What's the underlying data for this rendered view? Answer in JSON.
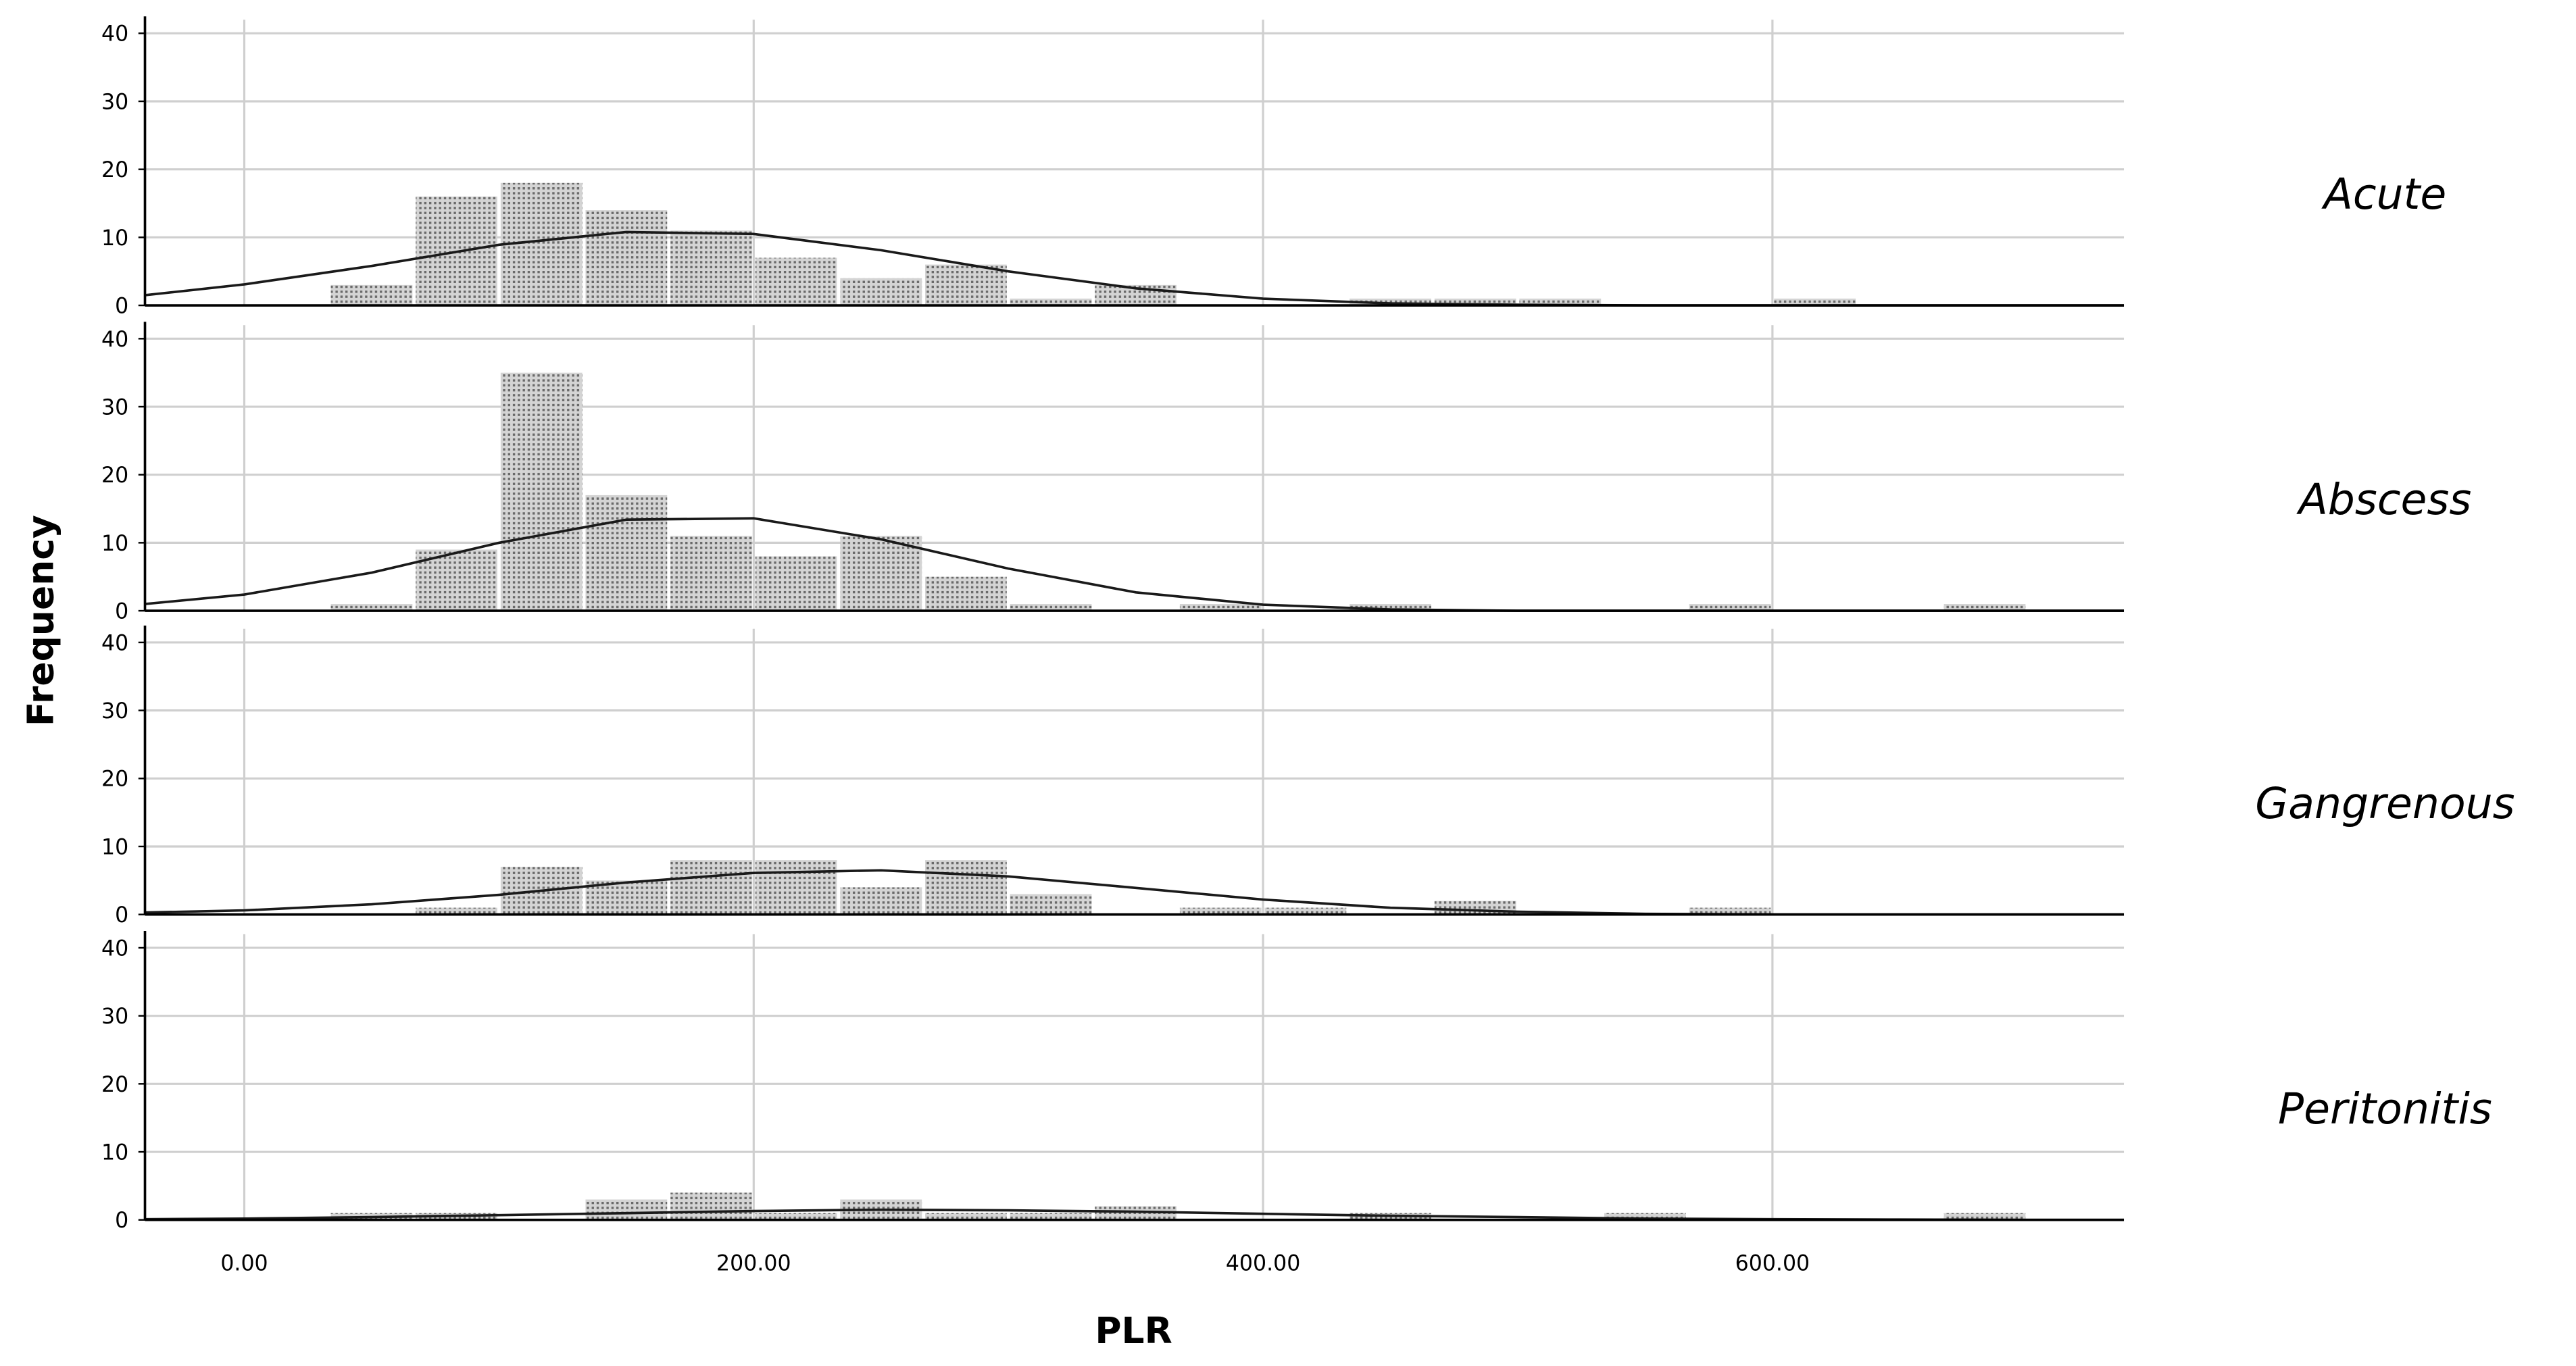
{
  "chart_data": {
    "type": "histogram",
    "xlabel": "PLR",
    "ylabel": "Frequency",
    "xlim": [
      -39,
      738
    ],
    "xticks": [
      {
        "value": 0,
        "label": "0.00"
      },
      {
        "value": 200,
        "label": "200.00"
      },
      {
        "value": 400,
        "label": "400.00"
      },
      {
        "value": 600,
        "label": "600.00"
      }
    ],
    "ylim": [
      0,
      42
    ],
    "yticks": [
      0,
      10,
      20,
      30,
      40
    ],
    "grid": true,
    "color": "#a8a8a8",
    "curve_color": "#1a1a1a",
    "bins": [
      0,
      33.33,
      66.67,
      100,
      133.33,
      166.67,
      200,
      233.33,
      266.67,
      300,
      333.33,
      366.67,
      400,
      433.33,
      466.67,
      500,
      533.33,
      566.67,
      600,
      633.33,
      666.67,
      700
    ],
    "curve_x": [
      -39,
      0,
      50,
      100,
      150,
      200,
      250,
      300,
      350,
      400,
      450,
      500,
      550,
      600,
      650,
      700,
      738
    ],
    "series": [
      {
        "name": "Acute",
        "values": [
          0,
          3,
          16,
          18,
          14,
          11,
          7,
          4,
          6,
          1,
          3,
          0,
          0,
          1,
          1,
          1,
          0,
          0,
          1,
          0,
          0
        ],
        "curve": [
          1.5,
          3.1,
          5.8,
          8.9,
          10.8,
          10.5,
          8.1,
          5.0,
          2.5,
          1.0,
          0.3,
          0.1,
          0,
          0,
          0,
          0,
          0
        ]
      },
      {
        "name": "Abscess",
        "values": [
          0,
          1,
          9,
          35,
          17,
          11,
          8,
          11,
          5,
          1,
          0,
          1,
          0,
          1,
          0,
          0,
          0,
          1,
          0,
          0,
          1
        ],
        "curve": [
          1.0,
          2.4,
          5.6,
          10.0,
          13.4,
          13.6,
          10.5,
          6.2,
          2.7,
          0.9,
          0.2,
          0,
          0,
          0,
          0,
          0,
          0
        ]
      },
      {
        "name": "Gangrenous",
        "values": [
          0,
          0,
          1,
          7,
          5,
          8,
          8,
          4,
          8,
          3,
          0,
          1,
          1,
          0,
          2,
          0,
          0,
          1,
          0,
          0,
          0
        ],
        "curve": [
          0.3,
          0.6,
          1.5,
          2.9,
          4.7,
          6.1,
          6.5,
          5.6,
          3.9,
          2.2,
          1.0,
          0.4,
          0.1,
          0,
          0,
          0,
          0
        ]
      },
      {
        "name": "Peritonitis",
        "values": [
          0,
          1,
          1,
          0,
          3,
          4,
          1,
          3,
          1,
          1,
          2,
          0,
          0,
          1,
          0,
          0,
          1,
          0,
          0,
          0,
          1
        ],
        "curve": [
          0.1,
          0.2,
          0.4,
          0.7,
          1.0,
          1.3,
          1.5,
          1.4,
          1.2,
          0.9,
          0.6,
          0.4,
          0.2,
          0.1,
          0.05,
          0,
          0
        ]
      }
    ]
  }
}
